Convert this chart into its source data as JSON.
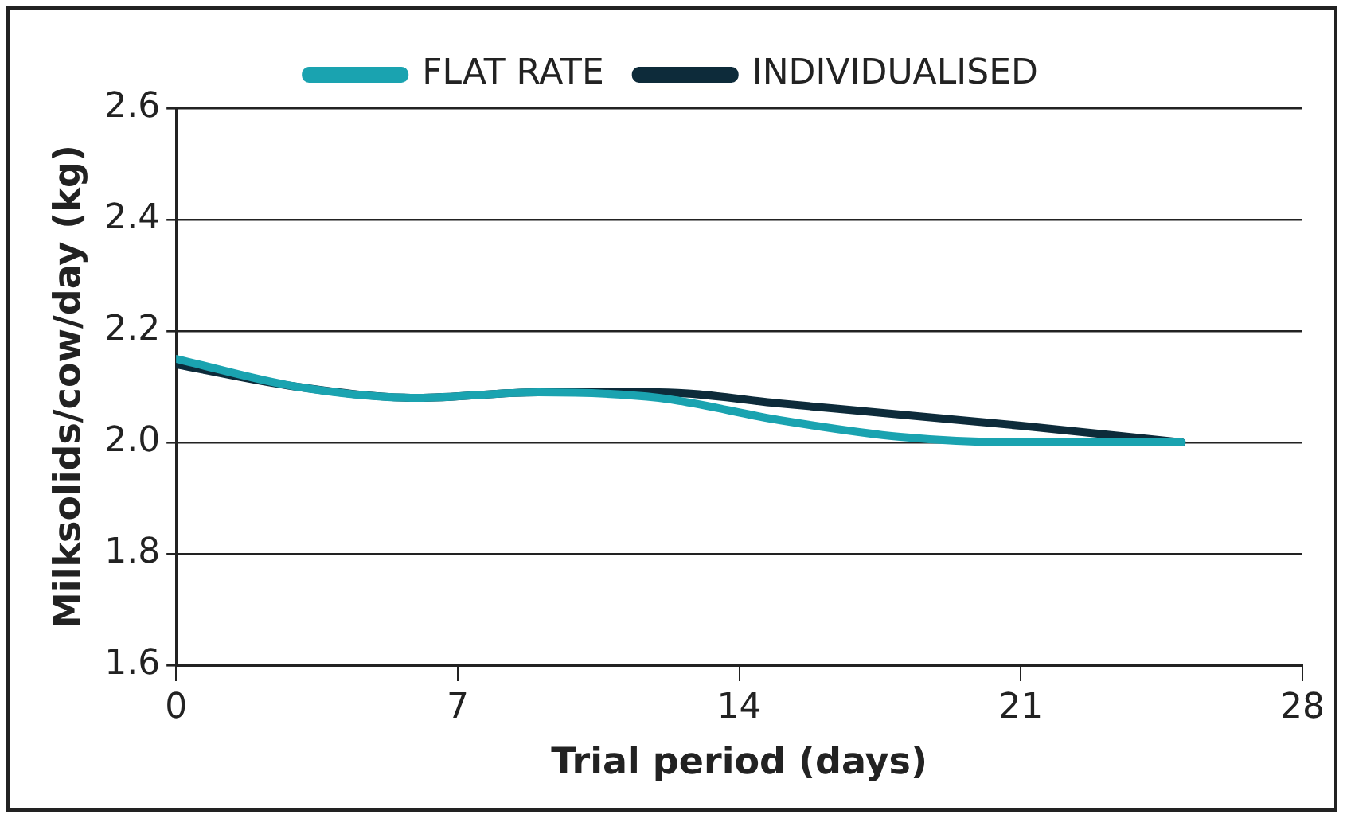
{
  "chart_data": {
    "type": "line",
    "xlabel": "Trial period (days)",
    "ylabel": "Milksolids/cow/day (kg)",
    "x": [
      0,
      3,
      6,
      9,
      12,
      15,
      18,
      21,
      25
    ],
    "series": [
      {
        "name": "FLAT RATE",
        "color": "#1aa3b0",
        "values": [
          2.15,
          2.1,
          2.08,
          2.09,
          2.08,
          2.04,
          2.01,
          2.0,
          2.0
        ]
      },
      {
        "name": "INDIVIDUALISED",
        "color": "#0d2b3a",
        "values": [
          2.14,
          2.1,
          2.08,
          2.09,
          2.09,
          2.07,
          2.05,
          2.03,
          2.0
        ]
      }
    ],
    "xlim": [
      0,
      28
    ],
    "xticks": [
      0,
      7,
      14,
      21,
      28
    ],
    "ylim": [
      1.6,
      2.6
    ],
    "yticks": [
      1.6,
      1.8,
      {
        "value": 2,
        "label": "2.0"
      },
      2.2,
      2.4,
      2.6
    ],
    "grid": "y",
    "legend": "top",
    "marker": "none",
    "line_style": "solid"
  }
}
